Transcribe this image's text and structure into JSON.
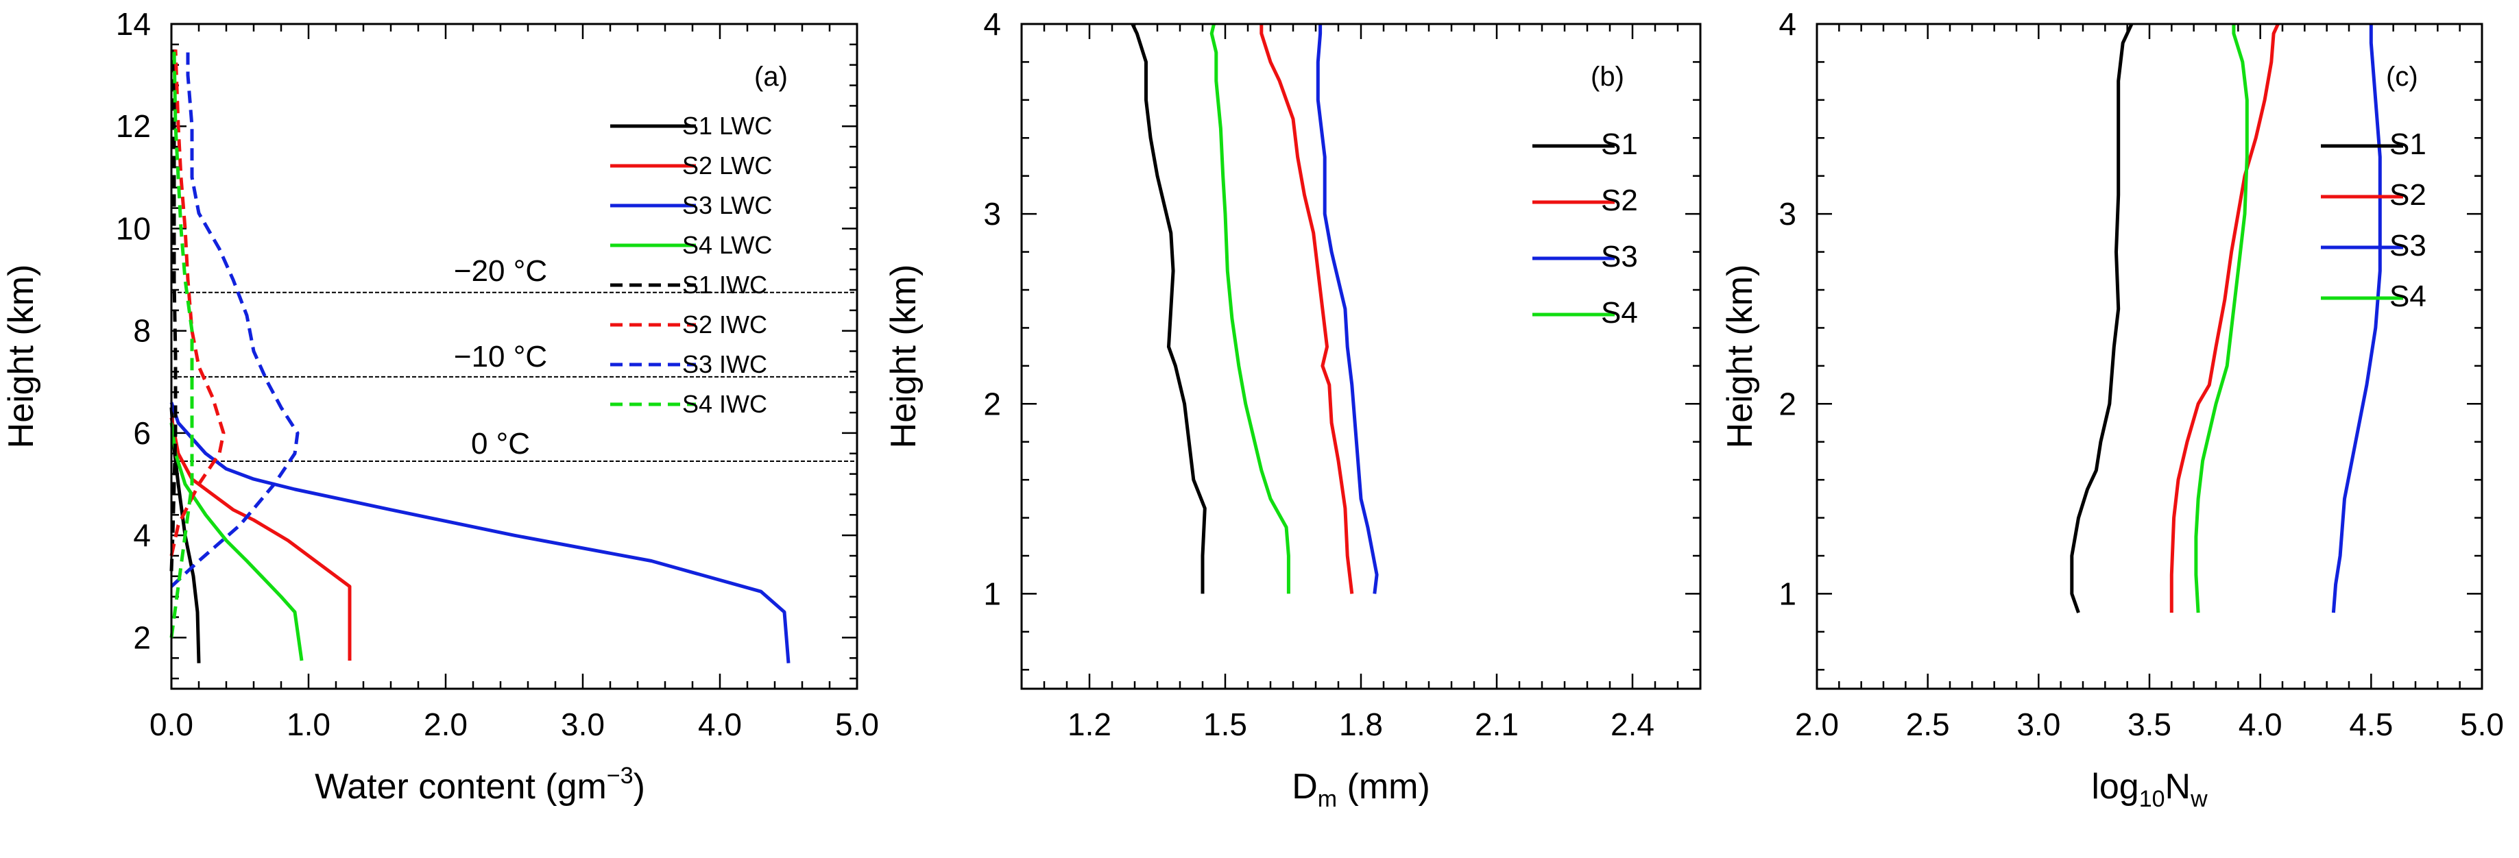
{
  "chart_data": [
    {
      "type": "line",
      "panel_label": "(a)",
      "xlabel": "Water content (gm",
      "xlabel_sup": "−3",
      "xlabel_tail": ")",
      "ylabel": "Height (km)",
      "xlim": [
        0,
        5
      ],
      "ylim": [
        1,
        14
      ],
      "xticks": [
        "0.0",
        "1.0",
        "2.0",
        "3.0",
        "4.0",
        "5.0"
      ],
      "yticks": [
        "2",
        "4",
        "6",
        "8",
        "10",
        "12",
        "14"
      ],
      "isotherms": [
        {
          "height": 8.75,
          "label": "−20 °C",
          "x": 3.45
        },
        {
          "height": 7.1,
          "label": "−10 °C",
          "x": 3.45
        },
        {
          "height": 5.45,
          "label": "0 °C",
          "x": 3.45
        }
      ],
      "series": [
        {
          "name": "S1 LWC",
          "color": "#000000",
          "dash": false,
          "points": [
            [
              0.2,
              1.5
            ],
            [
              0.19,
              2.5
            ],
            [
              0.16,
              3.2
            ],
            [
              0.1,
              4.0
            ],
            [
              0.05,
              5.0
            ],
            [
              0.02,
              5.7
            ],
            [
              0.0,
              6.5
            ]
          ]
        },
        {
          "name": "S2 LWC",
          "color": "#ee1111",
          "dash": false,
          "points": [
            [
              1.3,
              1.55
            ],
            [
              1.3,
              2.5
            ],
            [
              1.3,
              3.0
            ],
            [
              1.05,
              3.5
            ],
            [
              0.85,
              3.9
            ],
            [
              0.6,
              4.3
            ],
            [
              0.45,
              4.5
            ],
            [
              0.3,
              4.8
            ],
            [
              0.15,
              5.1
            ],
            [
              0.05,
              5.6
            ],
            [
              0.0,
              6.3
            ]
          ]
        },
        {
          "name": "S3 LWC",
          "color": "#1122dd",
          "dash": false,
          "points": [
            [
              4.5,
              1.5
            ],
            [
              4.47,
              2.5
            ],
            [
              4.3,
              2.9
            ],
            [
              3.5,
              3.5
            ],
            [
              2.5,
              4.0
            ],
            [
              1.6,
              4.5
            ],
            [
              0.9,
              4.9
            ],
            [
              0.6,
              5.1
            ],
            [
              0.4,
              5.3
            ],
            [
              0.25,
              5.6
            ],
            [
              0.15,
              5.9
            ],
            [
              0.05,
              6.2
            ],
            [
              0.0,
              6.6
            ]
          ]
        },
        {
          "name": "S4 LWC",
          "color": "#11dd11",
          "dash": false,
          "points": [
            [
              0.95,
              1.55
            ],
            [
              0.9,
              2.5
            ],
            [
              0.8,
              2.8
            ],
            [
              0.55,
              3.5
            ],
            [
              0.4,
              3.9
            ],
            [
              0.25,
              4.4
            ],
            [
              0.1,
              5.0
            ],
            [
              0.03,
              5.6
            ],
            [
              0.0,
              6.2
            ]
          ]
        },
        {
          "name": "S1 IWC",
          "color": "#000000",
          "dash": true,
          "points": [
            [
              0.0,
              3.3
            ],
            [
              0.01,
              4.0
            ],
            [
              0.02,
              5.0
            ],
            [
              0.03,
              6.0
            ],
            [
              0.03,
              7.5
            ],
            [
              0.02,
              9.0
            ],
            [
              0.02,
              11.0
            ],
            [
              0.02,
              13.5
            ]
          ]
        },
        {
          "name": "S2 IWC",
          "color": "#ee1111",
          "dash": true,
          "points": [
            [
              0.0,
              3.6
            ],
            [
              0.05,
              4.2
            ],
            [
              0.2,
              5.0
            ],
            [
              0.35,
              5.6
            ],
            [
              0.38,
              6.0
            ],
            [
              0.3,
              6.7
            ],
            [
              0.2,
              7.3
            ],
            [
              0.15,
              8.0
            ],
            [
              0.12,
              9.0
            ],
            [
              0.1,
              10.0
            ],
            [
              0.07,
              11.0
            ],
            [
              0.05,
              12.0
            ],
            [
              0.03,
              13.5
            ]
          ]
        },
        {
          "name": "S3 IWC",
          "color": "#1122dd",
          "dash": true,
          "points": [
            [
              0.0,
              3.0
            ],
            [
              0.2,
              3.5
            ],
            [
              0.5,
              4.2
            ],
            [
              0.75,
              5.0
            ],
            [
              0.9,
              5.6
            ],
            [
              0.92,
              6.0
            ],
            [
              0.8,
              6.5
            ],
            [
              0.7,
              7.0
            ],
            [
              0.6,
              7.6
            ],
            [
              0.55,
              8.3
            ],
            [
              0.45,
              9.0
            ],
            [
              0.35,
              9.6
            ],
            [
              0.2,
              10.3
            ],
            [
              0.15,
              11.0
            ],
            [
              0.15,
              12.0
            ],
            [
              0.12,
              13.0
            ],
            [
              0.12,
              13.5
            ]
          ]
        },
        {
          "name": "S4 IWC",
          "color": "#11dd11",
          "dash": true,
          "points": [
            [
              0.0,
              2.0
            ],
            [
              0.05,
              3.0
            ],
            [
              0.1,
              4.0
            ],
            [
              0.15,
              5.0
            ],
            [
              0.15,
              6.0
            ],
            [
              0.15,
              7.0
            ],
            [
              0.15,
              8.0
            ],
            [
              0.1,
              9.0
            ],
            [
              0.07,
              10.0
            ],
            [
              0.05,
              11.0
            ],
            [
              0.03,
              12.0
            ],
            [
              0.02,
              13.5
            ]
          ]
        }
      ]
    },
    {
      "type": "line",
      "panel_label": "(b)",
      "xlabel": "D",
      "xlabel_sub": "m",
      "xlabel_tail": " (mm)",
      "ylabel": "Height (km)",
      "xlim": [
        1.05,
        2.55
      ],
      "ylim": [
        0.5,
        4
      ],
      "xticks": [
        "1.2",
        "1.5",
        "1.8",
        "2.1",
        "2.4"
      ],
      "yticks": [
        "1",
        "2",
        "3",
        "4"
      ],
      "series": [
        {
          "name": "S1",
          "color": "#000000",
          "points": [
            [
              1.45,
              1.0
            ],
            [
              1.45,
              1.2
            ],
            [
              1.455,
              1.45
            ],
            [
              1.43,
              1.6
            ],
            [
              1.42,
              1.8
            ],
            [
              1.41,
              2.0
            ],
            [
              1.39,
              2.2
            ],
            [
              1.375,
              2.3
            ],
            [
              1.38,
              2.5
            ],
            [
              1.385,
              2.7
            ],
            [
              1.38,
              2.9
            ],
            [
              1.37,
              3.0
            ],
            [
              1.35,
              3.2
            ],
            [
              1.335,
              3.4
            ],
            [
              1.325,
              3.6
            ],
            [
              1.325,
              3.8
            ],
            [
              1.305,
              3.95
            ],
            [
              1.295,
              4.0
            ]
          ]
        },
        {
          "name": "S2",
          "color": "#ee1111",
          "points": [
            [
              1.78,
              1.0
            ],
            [
              1.77,
              1.2
            ],
            [
              1.765,
              1.45
            ],
            [
              1.75,
              1.7
            ],
            [
              1.735,
              1.9
            ],
            [
              1.73,
              2.1
            ],
            [
              1.715,
              2.2
            ],
            [
              1.725,
              2.3
            ],
            [
              1.715,
              2.5
            ],
            [
              1.705,
              2.7
            ],
            [
              1.695,
              2.9
            ],
            [
              1.675,
              3.1
            ],
            [
              1.66,
              3.3
            ],
            [
              1.65,
              3.5
            ],
            [
              1.62,
              3.7
            ],
            [
              1.6,
              3.8
            ],
            [
              1.58,
              3.95
            ],
            [
              1.58,
              4.0
            ]
          ]
        },
        {
          "name": "S3",
          "color": "#1122dd",
          "points": [
            [
              1.83,
              1.0
            ],
            [
              1.835,
              1.1
            ],
            [
              1.815,
              1.35
            ],
            [
              1.8,
              1.5
            ],
            [
              1.79,
              1.8
            ],
            [
              1.78,
              2.1
            ],
            [
              1.77,
              2.3
            ],
            [
              1.765,
              2.5
            ],
            [
              1.755,
              2.6
            ],
            [
              1.735,
              2.8
            ],
            [
              1.72,
              3.0
            ],
            [
              1.72,
              3.3
            ],
            [
              1.705,
              3.6
            ],
            [
              1.705,
              3.8
            ],
            [
              1.71,
              3.95
            ],
            [
              1.71,
              4.0
            ]
          ]
        },
        {
          "name": "S4",
          "color": "#11dd11",
          "points": [
            [
              1.64,
              1.0
            ],
            [
              1.64,
              1.2
            ],
            [
              1.635,
              1.35
            ],
            [
              1.6,
              1.5
            ],
            [
              1.58,
              1.65
            ],
            [
              1.565,
              1.8
            ],
            [
              1.545,
              2.0
            ],
            [
              1.53,
              2.2
            ],
            [
              1.515,
              2.45
            ],
            [
              1.505,
              2.7
            ],
            [
              1.5,
              3.0
            ],
            [
              1.495,
              3.2
            ],
            [
              1.49,
              3.45
            ],
            [
              1.48,
              3.7
            ],
            [
              1.48,
              3.85
            ],
            [
              1.47,
              3.95
            ],
            [
              1.475,
              4.0
            ]
          ]
        }
      ]
    },
    {
      "type": "line",
      "panel_label": "(c)",
      "xlabel": "log",
      "xlabel_sub": "10",
      "xlabel_mid": "N",
      "xlabel_sub2": "w",
      "ylabel": "Height (km)",
      "xlim": [
        2.0,
        5.0
      ],
      "ylim": [
        0.5,
        4
      ],
      "xticks": [
        "2.0",
        "2.5",
        "3.0",
        "3.5",
        "4.0",
        "4.5",
        "5.0"
      ],
      "yticks": [
        "1",
        "2",
        "3",
        "4"
      ],
      "series": [
        {
          "name": "S1",
          "color": "#000000",
          "points": [
            [
              3.18,
              0.9
            ],
            [
              3.15,
              1.0
            ],
            [
              3.15,
              1.2
            ],
            [
              3.18,
              1.4
            ],
            [
              3.22,
              1.55
            ],
            [
              3.26,
              1.65
            ],
            [
              3.28,
              1.8
            ],
            [
              3.32,
              2.0
            ],
            [
              3.34,
              2.3
            ],
            [
              3.36,
              2.5
            ],
            [
              3.35,
              2.8
            ],
            [
              3.36,
              3.1
            ],
            [
              3.36,
              3.4
            ],
            [
              3.36,
              3.7
            ],
            [
              3.38,
              3.9
            ],
            [
              3.42,
              4.0
            ]
          ]
        },
        {
          "name": "S2",
          "color": "#ee1111",
          "points": [
            [
              3.6,
              0.9
            ],
            [
              3.6,
              1.1
            ],
            [
              3.61,
              1.4
            ],
            [
              3.63,
              1.6
            ],
            [
              3.67,
              1.8
            ],
            [
              3.72,
              2.0
            ],
            [
              3.77,
              2.1
            ],
            [
              3.8,
              2.3
            ],
            [
              3.84,
              2.55
            ],
            [
              3.87,
              2.8
            ],
            [
              3.9,
              3.0
            ],
            [
              3.93,
              3.2
            ],
            [
              3.98,
              3.4
            ],
            [
              4.02,
              3.6
            ],
            [
              4.05,
              3.8
            ],
            [
              4.06,
              3.95
            ],
            [
              4.08,
              4.0
            ]
          ]
        },
        {
          "name": "S3",
          "color": "#1122dd",
          "points": [
            [
              4.33,
              0.9
            ],
            [
              4.34,
              1.05
            ],
            [
              4.36,
              1.2
            ],
            [
              4.38,
              1.5
            ],
            [
              4.43,
              1.8
            ],
            [
              4.48,
              2.1
            ],
            [
              4.52,
              2.4
            ],
            [
              4.54,
              2.7
            ],
            [
              4.54,
              3.0
            ],
            [
              4.54,
              3.3
            ],
            [
              4.52,
              3.6
            ],
            [
              4.5,
              3.9
            ],
            [
              4.5,
              4.0
            ]
          ]
        },
        {
          "name": "S4",
          "color": "#11dd11",
          "points": [
            [
              3.72,
              0.9
            ],
            [
              3.71,
              1.1
            ],
            [
              3.71,
              1.3
            ],
            [
              3.72,
              1.5
            ],
            [
              3.74,
              1.7
            ],
            [
              3.77,
              1.85
            ],
            [
              3.8,
              2.0
            ],
            [
              3.85,
              2.2
            ],
            [
              3.88,
              2.5
            ],
            [
              3.91,
              2.8
            ],
            [
              3.93,
              3.0
            ],
            [
              3.94,
              3.3
            ],
            [
              3.94,
              3.6
            ],
            [
              3.92,
              3.8
            ],
            [
              3.88,
              3.95
            ],
            [
              3.88,
              4.0
            ]
          ]
        }
      ]
    }
  ]
}
